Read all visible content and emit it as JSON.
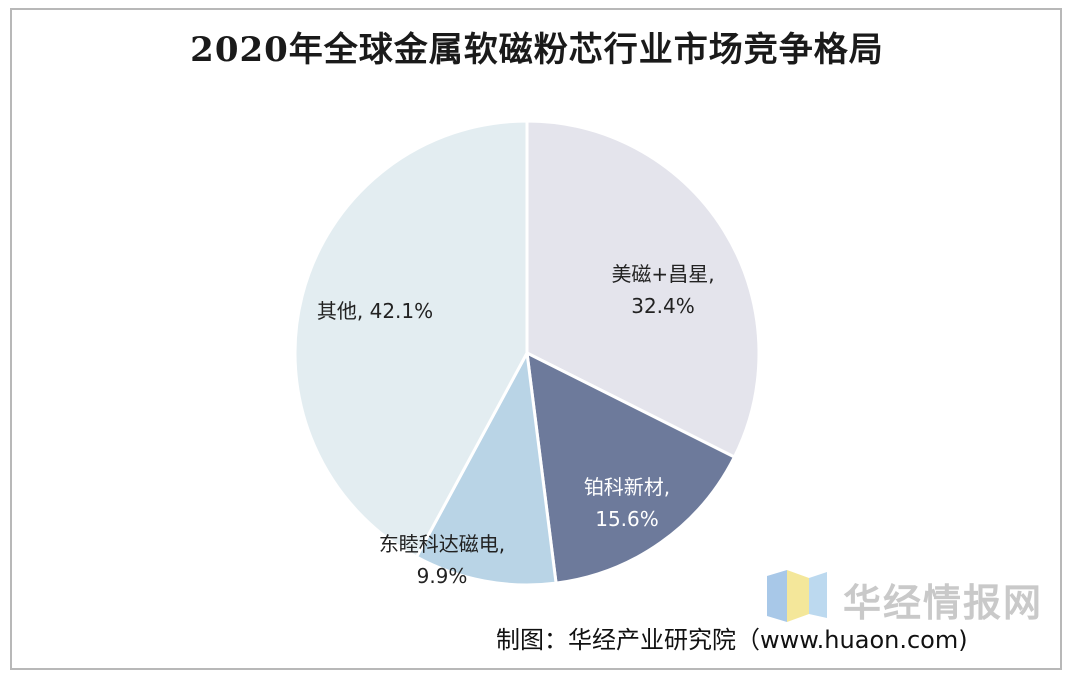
{
  "chart_data": {
    "type": "pie",
    "title": "2020年全球金属软磁粉芯行业市场竞争格局",
    "slices": [
      {
        "label": "美磁+昌星,",
        "value": 32.4,
        "value_text": "32.4%",
        "color": "#e4e4ec"
      },
      {
        "label": "铂科新材,",
        "value": 15.6,
        "value_text": "15.6%",
        "color": "#6d7a9b"
      },
      {
        "label": "东睦科达磁电,",
        "value": 9.9,
        "value_text": "9.9%",
        "color": "#b9d4e6"
      },
      {
        "label": "其他,",
        "value": 42.1,
        "value_text": "42.1%",
        "color": "#e3edf1"
      }
    ]
  },
  "watermark": {
    "text": "华经情报网"
  },
  "footer": {
    "source": "制图：华经产业研究院（www.huaon.com)"
  }
}
